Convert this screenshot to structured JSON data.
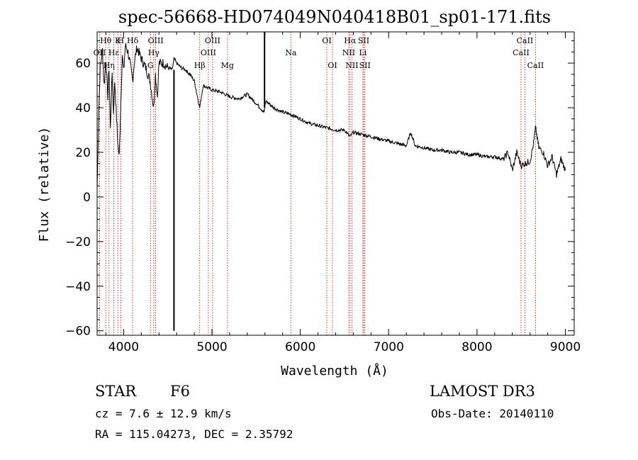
{
  "chart_data": {
    "type": "line",
    "title": "spec-56668-HD074049N040418B01_sp01-171.fits",
    "xlabel": "Wavelength (Å)",
    "ylabel": "Flux (relative)",
    "xlim": [
      3700,
      9100
    ],
    "ylim": [
      -62,
      74
    ],
    "xticks": [
      4000,
      5000,
      6000,
      7000,
      8000,
      9000
    ],
    "yticks": [
      -60,
      -40,
      -20,
      0,
      20,
      40,
      60
    ],
    "ytick_labels": [
      "−60",
      "−40",
      "−20",
      "0",
      "20",
      "40",
      "60"
    ],
    "series": [
      {
        "name": "flux",
        "x": [
          3700,
          3720,
          3735,
          3760,
          3780,
          3800,
          3820,
          3835,
          3850,
          3870,
          3885,
          3900,
          3920,
          3933,
          3950,
          3968,
          3985,
          4000,
          4020,
          4050,
          4080,
          4102,
          4120,
          4150,
          4200,
          4250,
          4300,
          4340,
          4360,
          4383,
          4400,
          4450,
          4500,
          4550,
          4570,
          4600,
          4650,
          4700,
          4750,
          4800,
          4861,
          4900,
          4950,
          5000,
          5100,
          5200,
          5300,
          5400,
          5500,
          5590,
          5610,
          5700,
          5800,
          5892,
          5950,
          6000,
          6100,
          6200,
          6300,
          6400,
          6500,
          6563,
          6600,
          6700,
          6800,
          6900,
          7000,
          7100,
          7200,
          7250,
          7300,
          7400,
          7500,
          7600,
          7700,
          7800,
          7900,
          8000,
          8100,
          8200,
          8300,
          8350,
          8400,
          8450,
          8498,
          8542,
          8600,
          8640,
          8662,
          8700,
          8750,
          8800,
          8850,
          8900,
          8950,
          9000
        ],
        "y": [
          3,
          40,
          58,
          66,
          50,
          62,
          45,
          58,
          30,
          56,
          38,
          52,
          35,
          25,
          18,
          42,
          64,
          56,
          68,
          65,
          58,
          52,
          60,
          67,
          62,
          58,
          52,
          40,
          55,
          45,
          60,
          60,
          58,
          57,
          62,
          60,
          58,
          57,
          55,
          52,
          40,
          50,
          49,
          48,
          47,
          45,
          44,
          46,
          42,
          38,
          43,
          40,
          38,
          37,
          36,
          35,
          33,
          32,
          31,
          30,
          30,
          27,
          29,
          28,
          27,
          26,
          25,
          24,
          23,
          29,
          23,
          22,
          21,
          21,
          20,
          20,
          19,
          19,
          18,
          18,
          17,
          20,
          12,
          20,
          14,
          15,
          16,
          24,
          31,
          22,
          20,
          14,
          18,
          10,
          17,
          12
        ]
      }
    ],
    "spikes": [
      {
        "x": 4570,
        "y": -60
      },
      {
        "x": 5595,
        "y": 74
      }
    ],
    "emission_lines": [
      {
        "label": "OII",
        "x": 3727,
        "pos": "row2"
      },
      {
        "label": "Hθ",
        "x": 3798,
        "pos": "row1"
      },
      {
        "label": "Hη",
        "x": 3835,
        "pos": "row3"
      },
      {
        "label": "Hε",
        "x": 3889,
        "pos": "row2"
      },
      {
        "label": "K",
        "x": 3934,
        "pos": "row1"
      },
      {
        "label": "H",
        "x": 3968,
        "pos": "row1"
      },
      {
        "label": "Hδ",
        "x": 4102,
        "pos": "row1"
      },
      {
        "label": "OIII",
        "x": 4363,
        "pos": "row1"
      },
      {
        "label": "Hγ",
        "x": 4341,
        "pos": "row2"
      },
      {
        "label": "G",
        "x": 4304,
        "pos": "row3"
      },
      {
        "label": "OIII",
        "x": 5007,
        "pos": "row1"
      },
      {
        "label": "OIII",
        "x": 4959,
        "pos": "row2"
      },
      {
        "label": "Hβ",
        "x": 4861,
        "pos": "row3"
      },
      {
        "label": "Mg",
        "x": 5175,
        "pos": "row3"
      },
      {
        "label": "Na",
        "x": 5893,
        "pos": "row2"
      },
      {
        "label": "OI",
        "x": 6300,
        "pos": "row1"
      },
      {
        "label": "OI",
        "x": 6364,
        "pos": "row3"
      },
      {
        "label": "Hα",
        "x": 6563,
        "pos": "row1"
      },
      {
        "label": "NII",
        "x": 6548,
        "pos": "row2"
      },
      {
        "label": "NII",
        "x": 6584,
        "pos": "row3"
      },
      {
        "label": "SII",
        "x": 6717,
        "pos": "row1"
      },
      {
        "label": "Li",
        "x": 6708,
        "pos": "row2"
      },
      {
        "label": "SII",
        "x": 6731,
        "pos": "row3"
      },
      {
        "label": "CaII",
        "x": 8542,
        "pos": "row1"
      },
      {
        "label": "CaII",
        "x": 8498,
        "pos": "row2"
      },
      {
        "label": "CaII",
        "x": 8662,
        "pos": "row3"
      }
    ]
  },
  "info": {
    "object_class": "STAR",
    "subclass": "F6",
    "survey": "LAMOST DR3",
    "redshift": "cz = 7.6 ± 12.9 km/s",
    "obs_date": "Obs-Date: 20140110",
    "coords": "RA = 115.04273, DEC =   2.35792"
  },
  "colors": {
    "line": "#000000",
    "marker": "#cc0000",
    "background": "#ffffff"
  }
}
